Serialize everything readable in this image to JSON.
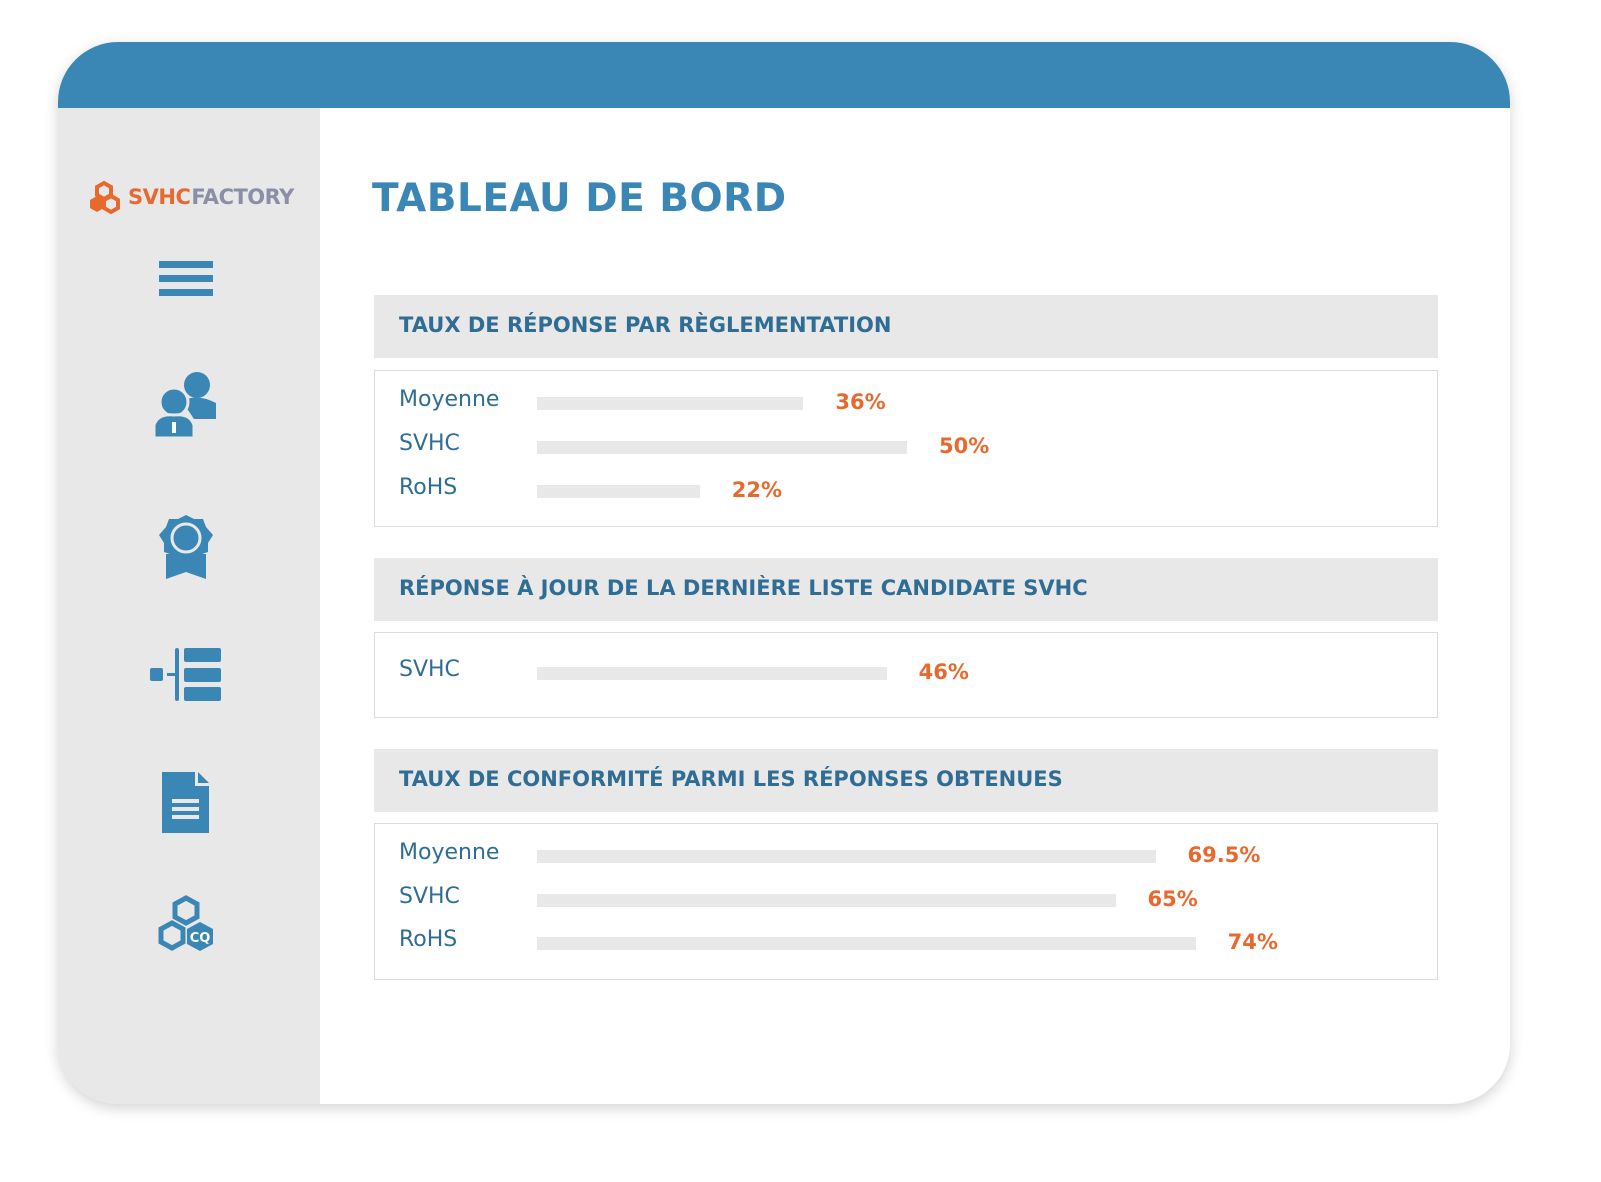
{
  "brand": {
    "name_part1": "SVHC",
    "name_part2": "FACTORY",
    "accent": "#e8692e",
    "primary": "#3a87b5"
  },
  "sidebar": {
    "items": [
      {
        "icon": "menu-icon"
      },
      {
        "icon": "users-icon"
      },
      {
        "icon": "certificate-icon"
      },
      {
        "icon": "tree-list-icon"
      },
      {
        "icon": "document-icon"
      },
      {
        "icon": "cq-hexagon-icon"
      }
    ]
  },
  "page_title": "TABLEAU DE BORD",
  "sections": [
    {
      "title": "TAUX DE RÉPONSE PAR RÈGLEMENTATION",
      "rows": [
        {
          "label": "Moyenne",
          "value": 36,
          "value_label": "36%"
        },
        {
          "label": "SVHC",
          "value": 50,
          "value_label": "50%"
        },
        {
          "label": "RoHS",
          "value": 22,
          "value_label": "22%"
        }
      ]
    },
    {
      "title": "RÉPONSE À JOUR DE LA DERNIÈRE LISTE CANDIDATE SVHC",
      "rows": [
        {
          "label": "SVHC",
          "value": 46,
          "value_label": "46%"
        }
      ]
    },
    {
      "title": "TAUX DE CONFORMITÉ PARMI LES RÉPONSES OBTENUES",
      "rows": [
        {
          "label": "Moyenne",
          "value": 69.5,
          "value_label": "69.5%"
        },
        {
          "label": "SVHC",
          "value": 65,
          "value_label": "65%"
        },
        {
          "label": "RoHS",
          "value": 74,
          "value_label": "74%"
        }
      ]
    }
  ]
}
